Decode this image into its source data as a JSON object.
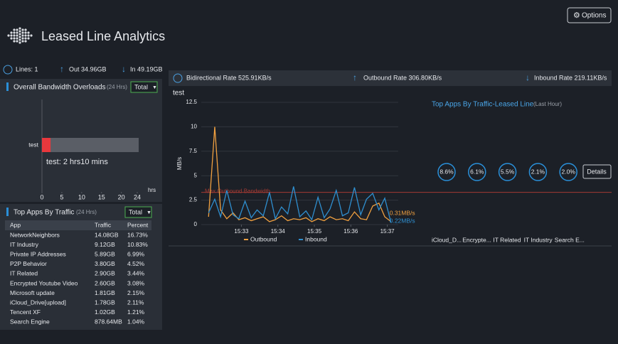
{
  "header": {
    "title": "Leased Line Analytics",
    "options": "Options"
  },
  "summary": {
    "lines": "Lines: 1",
    "out": "Out 34.96GB",
    "in": "In 49.19GB"
  },
  "overloads": {
    "title": "Overall Bandwidth Overloads",
    "period": "(24 Hrs)",
    "filter": "Total"
  },
  "top_apps": {
    "title": "Top Apps By Traffic",
    "period": "(24 Hrs)",
    "filter": "Total",
    "columns": [
      "App",
      "Traffic",
      "Percent"
    ],
    "rows": [
      [
        "NetworkNeighbors",
        "14.08GB",
        "16.73%"
      ],
      [
        "IT Industry",
        "9.12GB",
        "10.83%"
      ],
      [
        "Private IP Addresses",
        "5.89GB",
        "6.99%"
      ],
      [
        "P2P Behavior",
        "3.80GB",
        "4.52%"
      ],
      [
        "IT Related",
        "2.90GB",
        "3.44%"
      ],
      [
        "Encrypted Youtube Video",
        "2.60GB",
        "3.08%"
      ],
      [
        "Microsoft update",
        "1.81GB",
        "2.15%"
      ],
      [
        "iCloud_Drive[upload]",
        "1.78GB",
        "2.11%"
      ],
      [
        "Tencent XF",
        "1.02GB",
        "1.21%"
      ],
      [
        "Search Engine",
        "878.64MB",
        "1.04%"
      ]
    ]
  },
  "rates": [
    "Bidirectional Rate 525.91KB/s",
    "Outbound Rate 306.80KB/s",
    "Inbound Rate 219.11KB/s"
  ],
  "leased_apps": {
    "title": "Top Apps By Traffic-Leased Line",
    "period": "(Last Hour)",
    "details": "Details"
  },
  "chart_data": [
    {
      "type": "bar",
      "categories": [
        "test"
      ],
      "values": [
        2.17
      ],
      "color": "#e8383d",
      "annotation": "test: 2 hrs10 mins",
      "xlim": [
        0,
        24
      ],
      "xticks": [
        0,
        5,
        10,
        15,
        20,
        24
      ],
      "x_label": "hrs"
    },
    {
      "type": "line",
      "title": "test",
      "y_label": "MB/s",
      "x": [
        932.1,
        932.27,
        932.43,
        932.6,
        932.77,
        932.93,
        933.1,
        933.27,
        933.43,
        933.6,
        933.77,
        933.93,
        934.1,
        934.27,
        934.43,
        934.6,
        934.77,
        934.93,
        935.1,
        935.27,
        935.43,
        935.6,
        935.77,
        935.93,
        936.1,
        936.27,
        936.43,
        936.6,
        936.77,
        936.93,
        937.1
      ],
      "series": [
        {
          "name": "Outbound",
          "color": "#f0a040",
          "end_label": "0.31MB/s",
          "values": [
            0.8,
            10,
            1.5,
            0.6,
            1.2,
            0.5,
            0.7,
            0.4,
            0.6,
            0.8,
            0.3,
            0.5,
            0.9,
            0.4,
            0.6,
            0.5,
            0.7,
            0.3,
            0.6,
            0.4,
            0.8,
            0.5,
            0.6,
            0.4,
            1.3,
            0.6,
            0.5,
            1.9,
            2.2,
            0.8,
            0.31
          ]
        },
        {
          "name": "Inbound",
          "color": "#2f8fd0",
          "end_label": "0.22MB/s",
          "values": [
            1.2,
            2.6,
            0.8,
            3.5,
            1.0,
            0.6,
            2.4,
            0.7,
            1.5,
            0.9,
            3.3,
            0.6,
            1.8,
            1.1,
            3.9,
            0.8,
            1.4,
            0.5,
            2.8,
            0.7,
            1.6,
            3.5,
            0.9,
            1.2,
            3.8,
            1.0,
            2.6,
            3.2,
            1.5,
            2.7,
            0.22
          ]
        }
      ],
      "max_line": {
        "label": "Max Outbound Bandwidth",
        "value": 3.3,
        "color": "#a33a33"
      },
      "xlim": [
        931.9,
        937.3
      ],
      "xticks": [
        {
          "value": 933,
          "label": "15:33"
        },
        {
          "value": 934,
          "label": "15:34"
        },
        {
          "value": 935,
          "label": "15:35"
        },
        {
          "value": 936,
          "label": "15:36"
        },
        {
          "value": 937,
          "label": "15:37"
        }
      ],
      "ylim": [
        0,
        12.5
      ],
      "yticks": [
        0,
        2.5,
        5,
        7.5,
        10,
        12.5
      ],
      "grid": true
    },
    {
      "type": "percent-circles",
      "categories": [
        "iCloud_D...",
        "Encrypte...",
        "IT Related",
        "IT Industry",
        "Search E..."
      ],
      "values": [
        8.6,
        6.1,
        5.5,
        2.1,
        2.0
      ],
      "value_labels": [
        "8.6%",
        "6.1%",
        "5.5%",
        "2.1%",
        "2.0%"
      ],
      "color": "#2a8fd8"
    }
  ]
}
